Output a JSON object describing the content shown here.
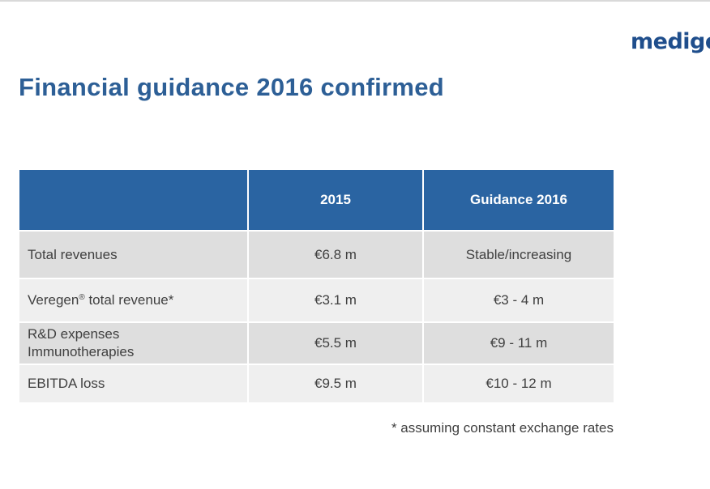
{
  "logo": {
    "text": "medigen"
  },
  "title": "Financial guidance 2016 confirmed",
  "table": {
    "headers": [
      "",
      "2015",
      "Guidance 2016"
    ],
    "rows": [
      {
        "label": "Total revenues",
        "values": [
          "€6.8 m",
          "Stable/increasing"
        ]
      },
      {
        "label_main": "Veregen",
        "label_mark": "®",
        "label_rest": " total revenue*",
        "values": [
          "€3.1 m",
          "€3 - 4 m"
        ]
      },
      {
        "label_line1": "R&D expenses",
        "label_line2": "Immunotherapies",
        "values": [
          "€5.5 m",
          "€9 - 11 m"
        ]
      },
      {
        "label": "EBITDA loss",
        "values": [
          "€9.5 m",
          "€10 - 12 m"
        ]
      }
    ]
  },
  "footnote": "* assuming constant exchange rates",
  "colors": {
    "title": "#2d5f96",
    "header_bg": "#2a64a2",
    "row_dark": "#dedede",
    "row_light": "#efefef",
    "logo": "#1f4e8c"
  }
}
